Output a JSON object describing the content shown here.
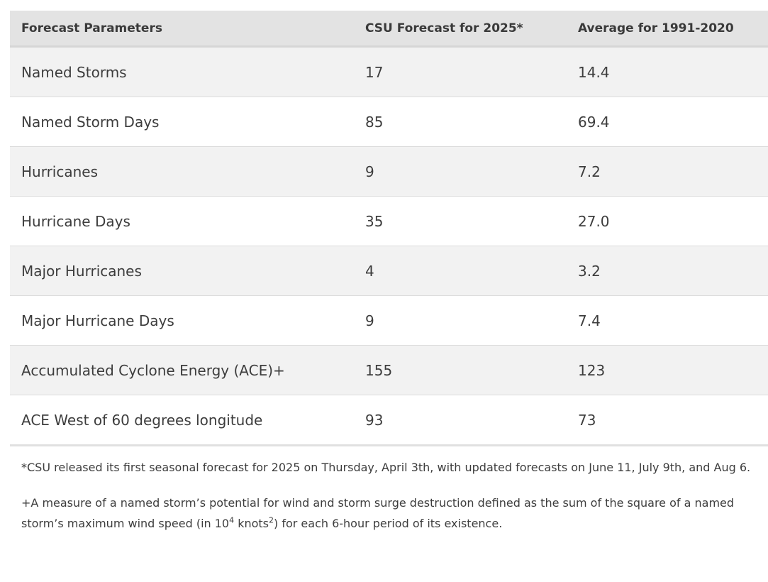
{
  "table": {
    "headers": [
      "Forecast Parameters",
      "CSU Forecast for 2025*",
      "Average for 1991-2020"
    ],
    "rows": [
      [
        "Named Storms",
        "17",
        "14.4"
      ],
      [
        "Named Storm Days",
        "85",
        "69.4"
      ],
      [
        "Hurricanes",
        "9",
        "7.2"
      ],
      [
        "Hurricane Days",
        "35",
        "27.0"
      ],
      [
        "Major Hurricanes",
        "4",
        "3.2"
      ],
      [
        "Major Hurricane Days",
        "9",
        "7.4"
      ],
      [
        "Accumulated Cyclone Energy (ACE)+",
        "155",
        "123"
      ],
      [
        "ACE West of 60 degrees longitude",
        "93",
        "73"
      ]
    ]
  },
  "notes": {
    "csu_release": "*CSU released its first seasonal forecast for 2025 on Thursday, April 3th, with updated forecasts on June 11, July 9th, and Aug 6.",
    "ace_definition": {
      "text_before": "+A measure of a named storm’s potential for wind and storm surge destruction defined as the sum of the square of a named storm’s maximum wind speed (in 10",
      "sup_1": "4",
      "text_middle": " knots",
      "sup_2": "2",
      "text_after": ") for each 6-hour period of its existence."
    }
  }
}
